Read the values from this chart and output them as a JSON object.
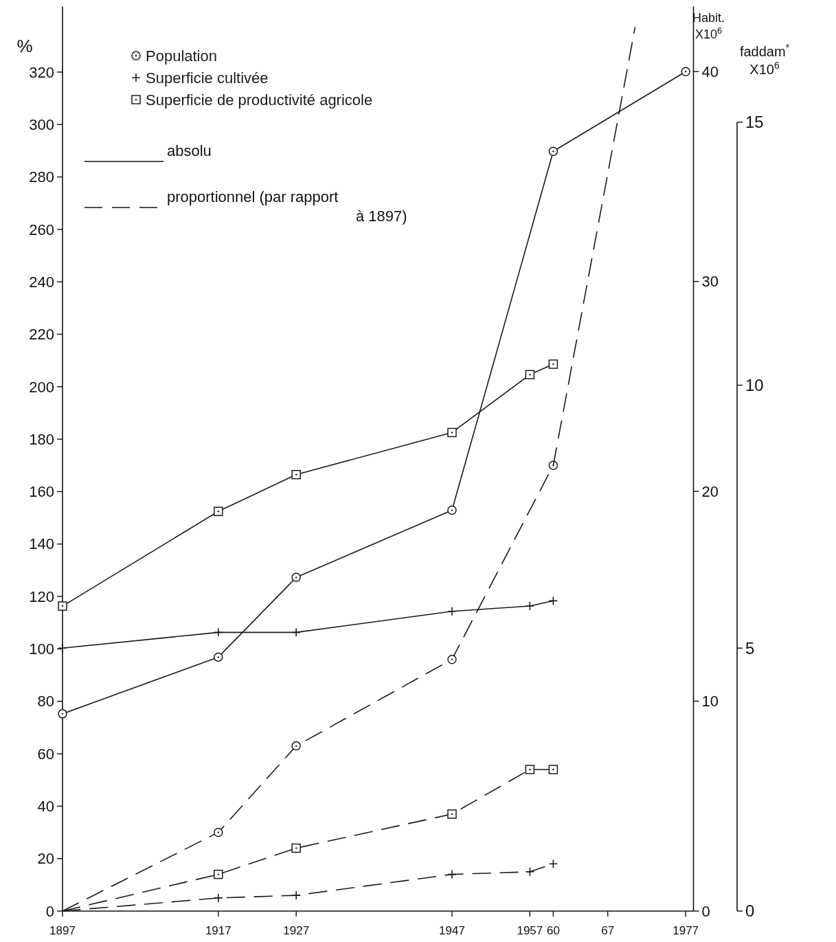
{
  "chart_data": {
    "type": "line",
    "ylabel": "%",
    "y2label": "Habit. X10$^{6}$",
    "y3label": "faddam$^{*}$ X10$^{6}$",
    "xlim": [
      1897,
      1978
    ],
    "xticks": [
      1897,
      1917,
      1927,
      1947,
      1957,
      {
        "value": 1960,
        "label": "60"
      },
      {
        "value": 1967,
        "label": "67"
      },
      1977
    ],
    "ylim": [
      0,
      345
    ],
    "yticks": [
      0,
      20,
      40,
      60,
      80,
      100,
      120,
      140,
      160,
      180,
      200,
      220,
      240,
      260,
      280,
      300,
      320
    ],
    "y2lim": [
      0,
      43.1
    ],
    "y2ticks": [
      0,
      10,
      20,
      30,
      40
    ],
    "y3lim": [
      0,
      17.2
    ],
    "y3ticks": [
      0,
      5,
      10,
      15
    ],
    "grid": false,
    "legend": "top left",
    "annotations": [
      "absolu",
      "proportionnel (par rapport à 1897)"
    ],
    "series": [
      {
        "name": "Population",
        "color": "#1a1a1a",
        "axis": "y2",
        "marker": "circle",
        "line_style": "solid",
        "x": [
          1897,
          1917,
          1927,
          1947,
          1960,
          1977
        ],
        "values": [
          9.4,
          12.1,
          15.9,
          19.1,
          36.2,
          40
        ]
      },
      {
        "name": "Superficie cultivée",
        "color": "#1a1a1a",
        "axis": "y3",
        "marker": "cross",
        "line_style": "solid",
        "x": [
          1897,
          1917,
          1927,
          1947,
          1957,
          1960
        ],
        "values": [
          5.0,
          5.3,
          5.3,
          5.7,
          5.8,
          5.9
        ]
      },
      {
        "name": "Superficie de productivité agricole",
        "color": "#1a1a1a",
        "axis": "y3",
        "marker": "square",
        "line_style": "solid",
        "x": [
          1897,
          1917,
          1927,
          1947,
          1957,
          1960
        ],
        "values": [
          5.8,
          7.6,
          8.3,
          9.1,
          10.2,
          10.4
        ]
      },
      {
        "color": "#1a1a1a",
        "marker": "circle",
        "line_style": "dashed",
        "x": [
          1897,
          1917,
          1927,
          1947,
          1960
        ],
        "values": [
          0,
          30,
          63,
          96,
          170
        ]
      },
      {
        "color": "#1a1a1a",
        "marker": "none",
        "line_style": "dashed",
        "x": [
          1960,
          1970.5
        ],
        "values": [
          170,
          337
        ]
      },
      {
        "color": "#1a1a1a",
        "marker": "cross",
        "line_style": "dashed",
        "x": [
          1897,
          1917,
          1927,
          1947,
          1957,
          1960
        ],
        "values": [
          0,
          5,
          6,
          14,
          15,
          18
        ]
      },
      {
        "color": "#1a1a1a",
        "marker": "square",
        "line_style": "dashed",
        "x": [
          1897,
          1917,
          1927,
          1947,
          1957,
          1960
        ],
        "values": [
          0,
          14,
          24,
          37,
          54,
          54
        ]
      }
    ]
  }
}
